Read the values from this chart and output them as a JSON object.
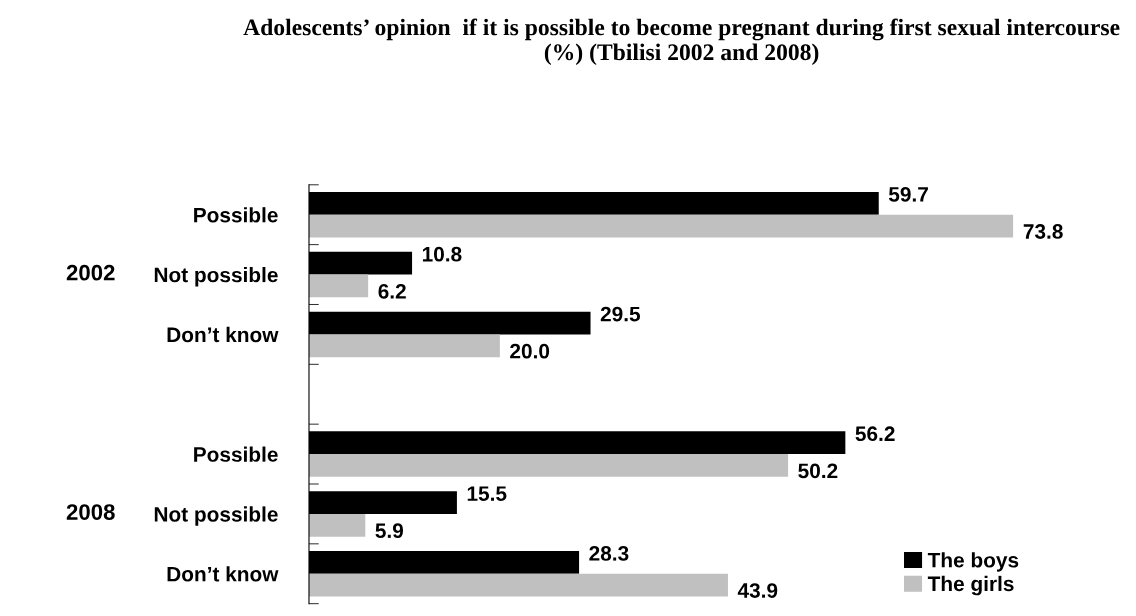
{
  "chart_data": {
    "type": "bar",
    "orientation": "horizontal",
    "title": "Adolescents’ opinion  if it is possible to become pregnant during first sexual intercourse (%) (Tbilisi 2002 and 2008)",
    "categories": [
      "Possible",
      "Not possible",
      "Don’t know",
      null,
      "Possible",
      "Not possible",
      "Don’t know"
    ],
    "series": [
      {
        "name": "The boys",
        "color": "#000000",
        "values": [
          59.7,
          10.8,
          29.5,
          null,
          56.2,
          15.5,
          28.3
        ],
        "value_labels": [
          "59.7",
          "10.8",
          "29.5",
          null,
          "56.2",
          "15.5",
          "28.3"
        ]
      },
      {
        "name": "The girls",
        "color": "#c0c0c0",
        "values": [
          73.8,
          6.2,
          20.0,
          null,
          50.2,
          5.9,
          43.9
        ],
        "value_labels": [
          "73.8",
          "6.2",
          "20.0",
          null,
          "50.2",
          "5.9",
          "43.9"
        ]
      }
    ],
    "annotations": [
      "2002",
      "2008"
    ],
    "tick_labels": "y",
    "grid": false,
    "legend": "bottom right"
  }
}
